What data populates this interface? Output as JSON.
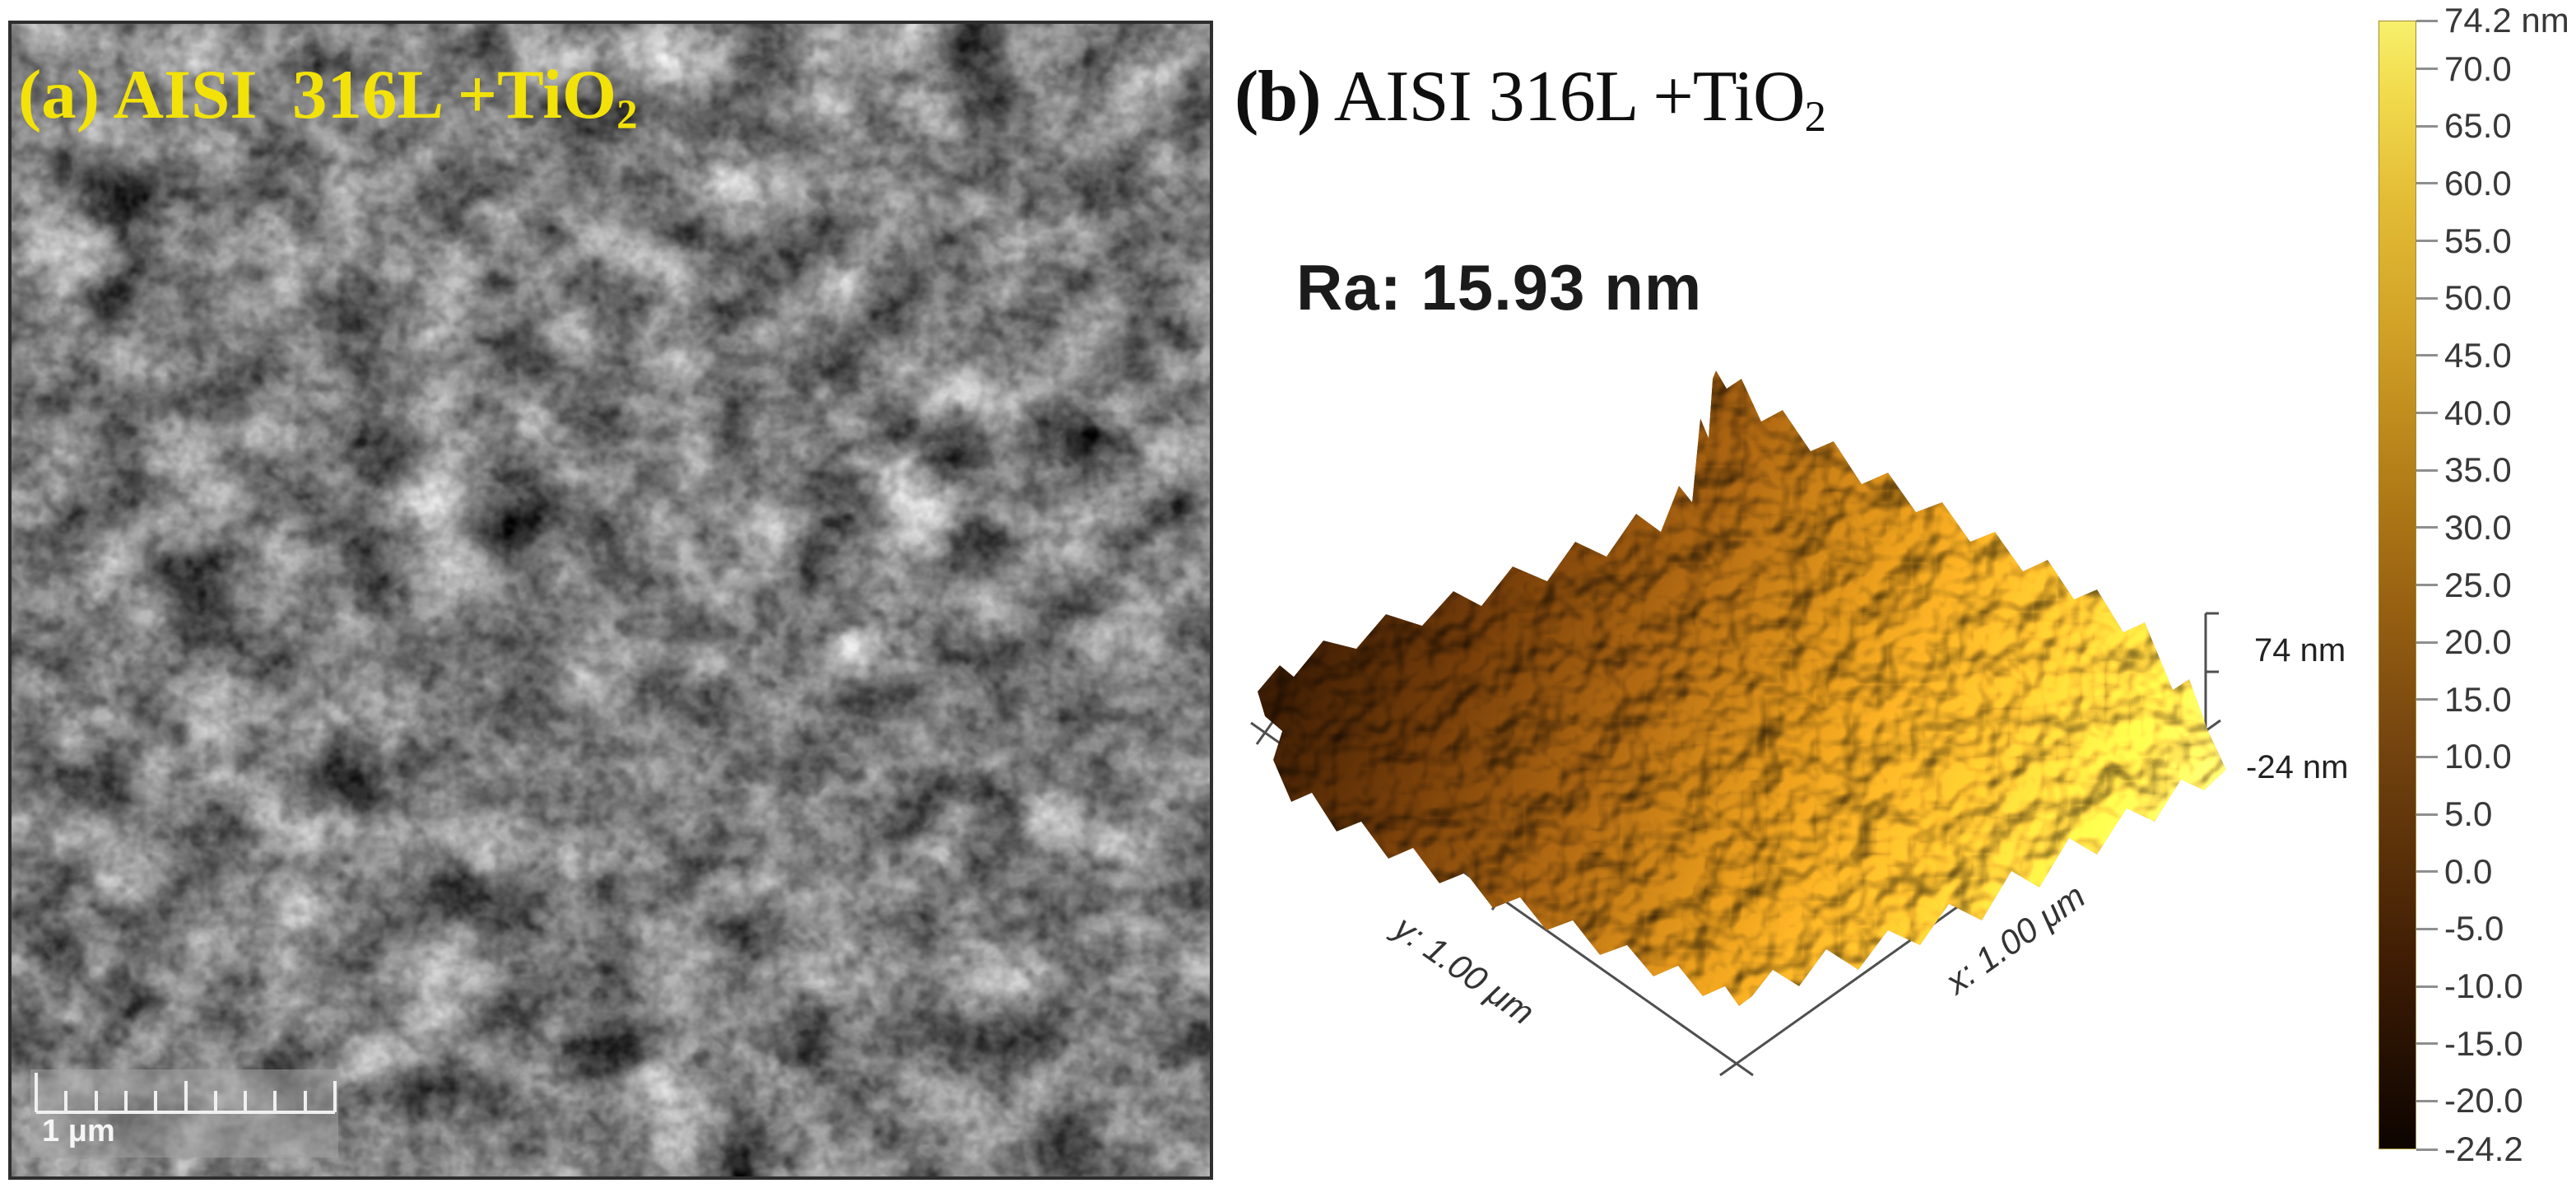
{
  "panel_a": {
    "label_prefix": "(a) AISI  316L +TiO",
    "label_sub": "2",
    "label_color": "#f2e20a",
    "scale_bar_label": "1 μm"
  },
  "panel_b": {
    "label_tag": "(b)",
    "label_text": " AISI 316L +TiO",
    "label_sub": "2",
    "roughness": "Ra: 15.93 nm",
    "z_max_label": "74 nm",
    "z_min_label": "-24 nm",
    "x_axis_label": "x: 1.00 μm",
    "y_axis_label": "y: 1.00 μm",
    "colorbar": {
      "max": 74.2,
      "min": -24.2,
      "unit": "nm",
      "ticks": [
        {
          "value": 74.2,
          "label": "74.2 nm"
        },
        {
          "value": 70,
          "label": "70.0"
        },
        {
          "value": 65,
          "label": "65.0"
        },
        {
          "value": 60,
          "label": "60.0"
        },
        {
          "value": 55,
          "label": "55.0"
        },
        {
          "value": 50,
          "label": "50.0"
        },
        {
          "value": 45,
          "label": "45.0"
        },
        {
          "value": 40,
          "label": "40.0"
        },
        {
          "value": 35,
          "label": "35.0"
        },
        {
          "value": 30,
          "label": "30.0"
        },
        {
          "value": 25,
          "label": "25.0"
        },
        {
          "value": 20,
          "label": "20.0"
        },
        {
          "value": 15,
          "label": "15.0"
        },
        {
          "value": 10,
          "label": "10.0"
        },
        {
          "value": 5,
          "label": "5.0"
        },
        {
          "value": 0,
          "label": "0.0"
        },
        {
          "value": -5,
          "label": "-5.0"
        },
        {
          "value": -10,
          "label": "-10.0"
        },
        {
          "value": -15,
          "label": "-15.0"
        },
        {
          "value": -20,
          "label": "-20.0"
        },
        {
          "value": -24.2,
          "label": "-24.2"
        }
      ],
      "gradient_top_to_bottom": [
        "#f7f06c",
        "#f2dc4e",
        "#e3bc35",
        "#d0a026",
        "#b57f18",
        "#976011",
        "#784710",
        "#5c3209",
        "#401d04",
        "#241002",
        "#0d0400"
      ]
    }
  },
  "chart_data": {
    "type": "heatmap",
    "title": "AFM 3D surface topography of AISI 316L +TiO2 coating",
    "x_axis": {
      "label": "x: 1.00 μm",
      "extent_um": 1.0
    },
    "y_axis": {
      "label": "y: 1.00 μm",
      "extent_um": 1.0
    },
    "z_axis": {
      "unit": "nm",
      "min": -24.2,
      "max": 74.2,
      "shown_labels": [
        "74 nm",
        "-24 nm"
      ]
    },
    "colorbar_ticks_nm": [
      74.2,
      70,
      65,
      60,
      55,
      50,
      45,
      40,
      35,
      30,
      25,
      20,
      15,
      10,
      5,
      0,
      -5,
      -10,
      -15,
      -20,
      -24.2
    ],
    "roughness_Ra_nm": 15.93,
    "colormap": "gold (near-black brown → bright yellow)",
    "legend_position": "right"
  }
}
